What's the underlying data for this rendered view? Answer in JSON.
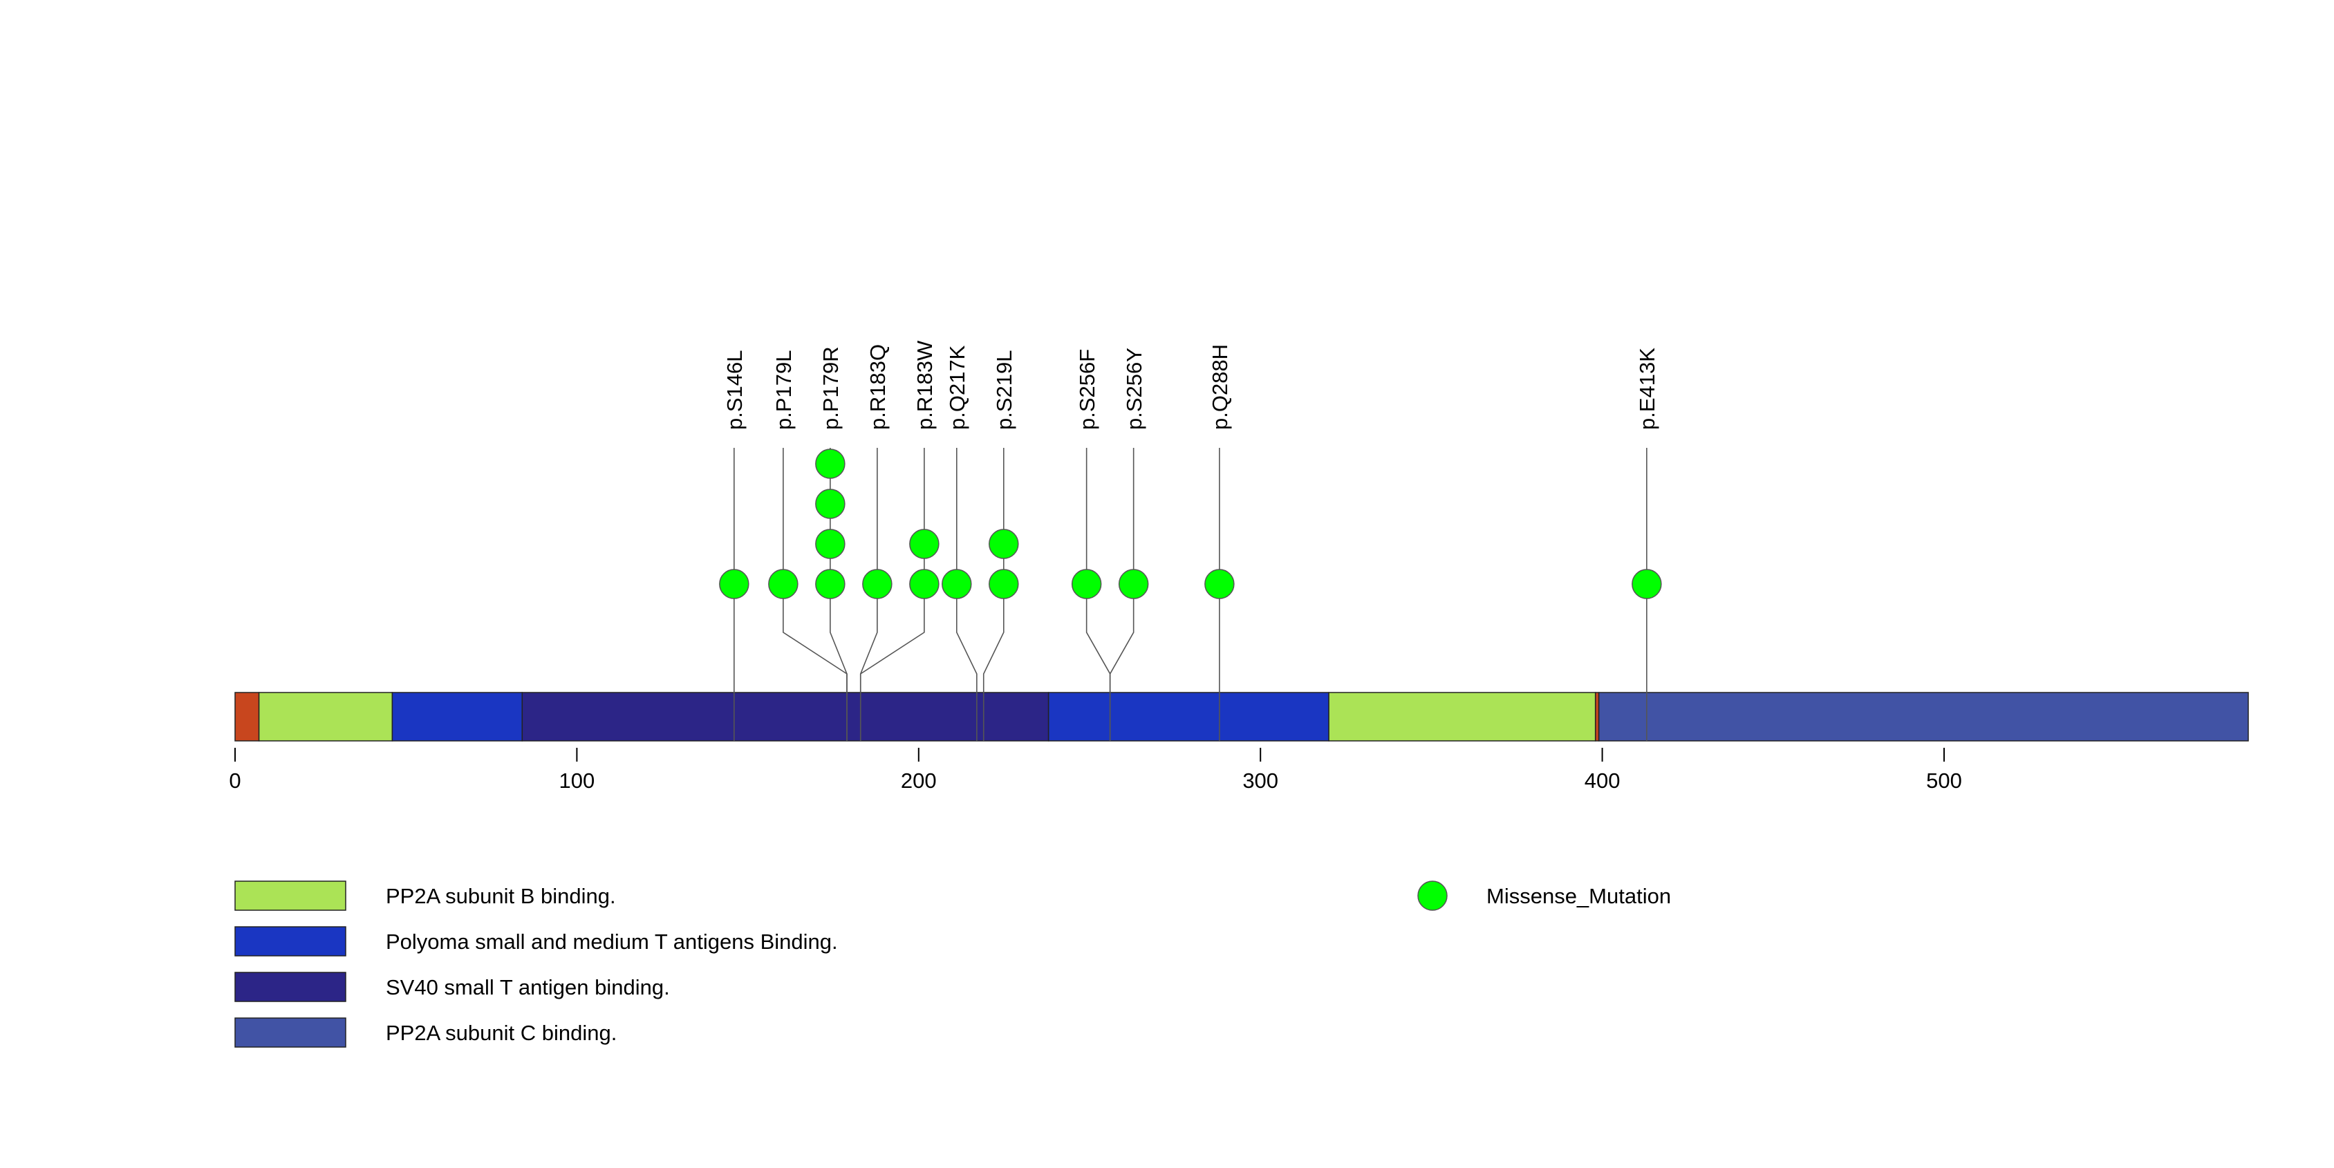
{
  "colors": {
    "background": "#ffffff",
    "outline": "#222222",
    "connector": "#555555",
    "missense": "#00ff00",
    "terminal_region": "#c8461e"
  },
  "chart_data": {
    "type": "lollipop",
    "title": "",
    "xlabel": "",
    "ylabel": "",
    "xlim": [
      0,
      589
    ],
    "ticks": [
      0,
      100,
      200,
      300,
      400,
      500
    ],
    "protein_length": 589,
    "domains": [
      {
        "start": 0,
        "end": 7,
        "color": "#c8461e",
        "label": ""
      },
      {
        "start": 7,
        "end": 46,
        "color": "#abe356",
        "label": "PP2A subunit B binding."
      },
      {
        "start": 46,
        "end": 84,
        "color": "#1a36c2",
        "label": "Polyoma small and medium T antigens Binding."
      },
      {
        "start": 84,
        "end": 238,
        "color": "#2c2587",
        "label": "SV40 small T antigen binding."
      },
      {
        "start": 238,
        "end": 320,
        "color": "#1a36c2",
        "label": "Polyoma small and medium T antigens Binding."
      },
      {
        "start": 320,
        "end": 398,
        "color": "#abe356",
        "label": "PP2A subunit B binding."
      },
      {
        "start": 398,
        "end": 399,
        "color": "#c8461e",
        "label": ""
      },
      {
        "start": 399,
        "end": 589,
        "color": "#4153a5",
        "label": "PP2A subunit C binding."
      }
    ],
    "mutations": [
      {
        "label": "p.S146L",
        "position": 146,
        "count": 1,
        "type": "Missense_Mutation"
      },
      {
        "label": "p.P179L",
        "position": 179,
        "count": 1,
        "type": "Missense_Mutation"
      },
      {
        "label": "p.P179R",
        "position": 179,
        "count": 4,
        "type": "Missense_Mutation"
      },
      {
        "label": "p.R183Q",
        "position": 183,
        "count": 1,
        "type": "Missense_Mutation"
      },
      {
        "label": "p.R183W",
        "position": 183,
        "count": 2,
        "type": "Missense_Mutation"
      },
      {
        "label": "p.Q217K",
        "position": 217,
        "count": 1,
        "type": "Missense_Mutation"
      },
      {
        "label": "p.S219L",
        "position": 219,
        "count": 2,
        "type": "Missense_Mutation"
      },
      {
        "label": "p.S256F",
        "position": 256,
        "count": 1,
        "type": "Missense_Mutation"
      },
      {
        "label": "p.S256Y",
        "position": 256,
        "count": 1,
        "type": "Missense_Mutation"
      },
      {
        "label": "p.Q288H",
        "position": 288,
        "count": 1,
        "type": "Missense_Mutation"
      },
      {
        "label": "p.E413K",
        "position": 413,
        "count": 1,
        "type": "Missense_Mutation"
      }
    ],
    "legend": {
      "domains": [
        {
          "label": "PP2A subunit B binding.",
          "color": "#abe356"
        },
        {
          "label": "Polyoma small and medium T antigens Binding.",
          "color": "#1a36c2"
        },
        {
          "label": "SV40 small T antigen binding.",
          "color": "#2c2587"
        },
        {
          "label": "PP2A subunit C binding.",
          "color": "#4153a5"
        }
      ],
      "mutation_types": [
        {
          "label": "Missense_Mutation",
          "color": "#00ff00"
        }
      ]
    }
  }
}
